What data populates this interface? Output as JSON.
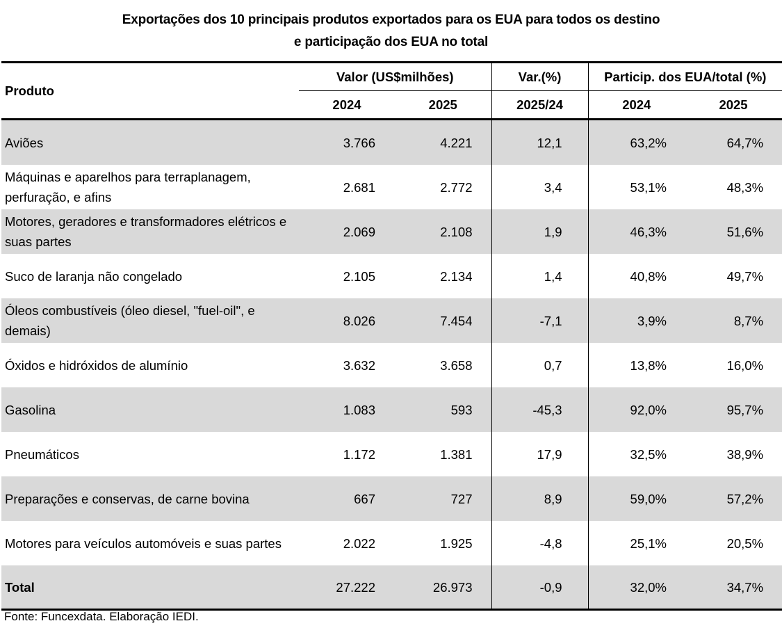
{
  "title": {
    "line1": "Exportações dos 10 principais produtos exportados para os EUA para todos os destino",
    "line2": "e participação dos EUA no total"
  },
  "table": {
    "headers": {
      "produto": "Produto",
      "valor_group": "Valor  (US$milhões)",
      "var_group": "Var.(%)",
      "particip_group": "Particip. dos  EUA/total (%)",
      "valor_2024": "2024",
      "valor_2025": "2025",
      "var_period": "2025/24",
      "particip_2024": "2024",
      "particip_2025": "2025"
    },
    "rows": [
      {
        "produto": "Aviões",
        "valor_2024": "3.766",
        "valor_2025": "4.221",
        "var": "12,1",
        "particip_2024": "63,2%",
        "particip_2025": "64,7%"
      },
      {
        "produto": "Máquinas e aparelhos para terraplanagem, perfuração, e afins",
        "valor_2024": "2.681",
        "valor_2025": "2.772",
        "var": "3,4",
        "particip_2024": "53,1%",
        "particip_2025": "48,3%"
      },
      {
        "produto": "Motores, geradores e transformadores elétricos e suas partes",
        "valor_2024": "2.069",
        "valor_2025": "2.108",
        "var": "1,9",
        "particip_2024": "46,3%",
        "particip_2025": "51,6%"
      },
      {
        "produto": "Suco de laranja não congelado",
        "valor_2024": "2.105",
        "valor_2025": "2.134",
        "var": "1,4",
        "particip_2024": "40,8%",
        "particip_2025": "49,7%"
      },
      {
        "produto": "Óleos combustíveis (óleo diesel, \"fuel-oil\", e demais)",
        "valor_2024": "8.026",
        "valor_2025": "7.454",
        "var": "-7,1",
        "particip_2024": "3,9%",
        "particip_2025": "8,7%"
      },
      {
        "produto": "Óxidos e hidróxidos de alumínio",
        "valor_2024": "3.632",
        "valor_2025": "3.658",
        "var": "0,7",
        "particip_2024": "13,8%",
        "particip_2025": "16,0%"
      },
      {
        "produto": "Gasolina",
        "valor_2024": "1.083",
        "valor_2025": "593",
        "var": "-45,3",
        "particip_2024": "92,0%",
        "particip_2025": "95,7%"
      },
      {
        "produto": "Pneumáticos",
        "valor_2024": "1.172",
        "valor_2025": "1.381",
        "var": "17,9",
        "particip_2024": "32,5%",
        "particip_2025": "38,9%"
      },
      {
        "produto": "Preparações e conservas, de carne bovina",
        "valor_2024": "667",
        "valor_2025": "727",
        "var": "8,9",
        "particip_2024": "59,0%",
        "particip_2025": "57,2%"
      },
      {
        "produto": "Motores para veículos automóveis e suas partes",
        "valor_2024": "2.022",
        "valor_2025": "1.925",
        "var": "-4,8",
        "particip_2024": "25,1%",
        "particip_2025": "20,5%"
      }
    ],
    "total": {
      "produto": "Total",
      "valor_2024": "27.222",
      "valor_2025": "26.973",
      "var": "-0,9",
      "particip_2024": "32,0%",
      "particip_2025": "34,7%"
    }
  },
  "source": "Fonte: Funcexdata. Elaboração IEDI.",
  "colors": {
    "stripe": "#d9d9d9",
    "rule": "#000000"
  }
}
